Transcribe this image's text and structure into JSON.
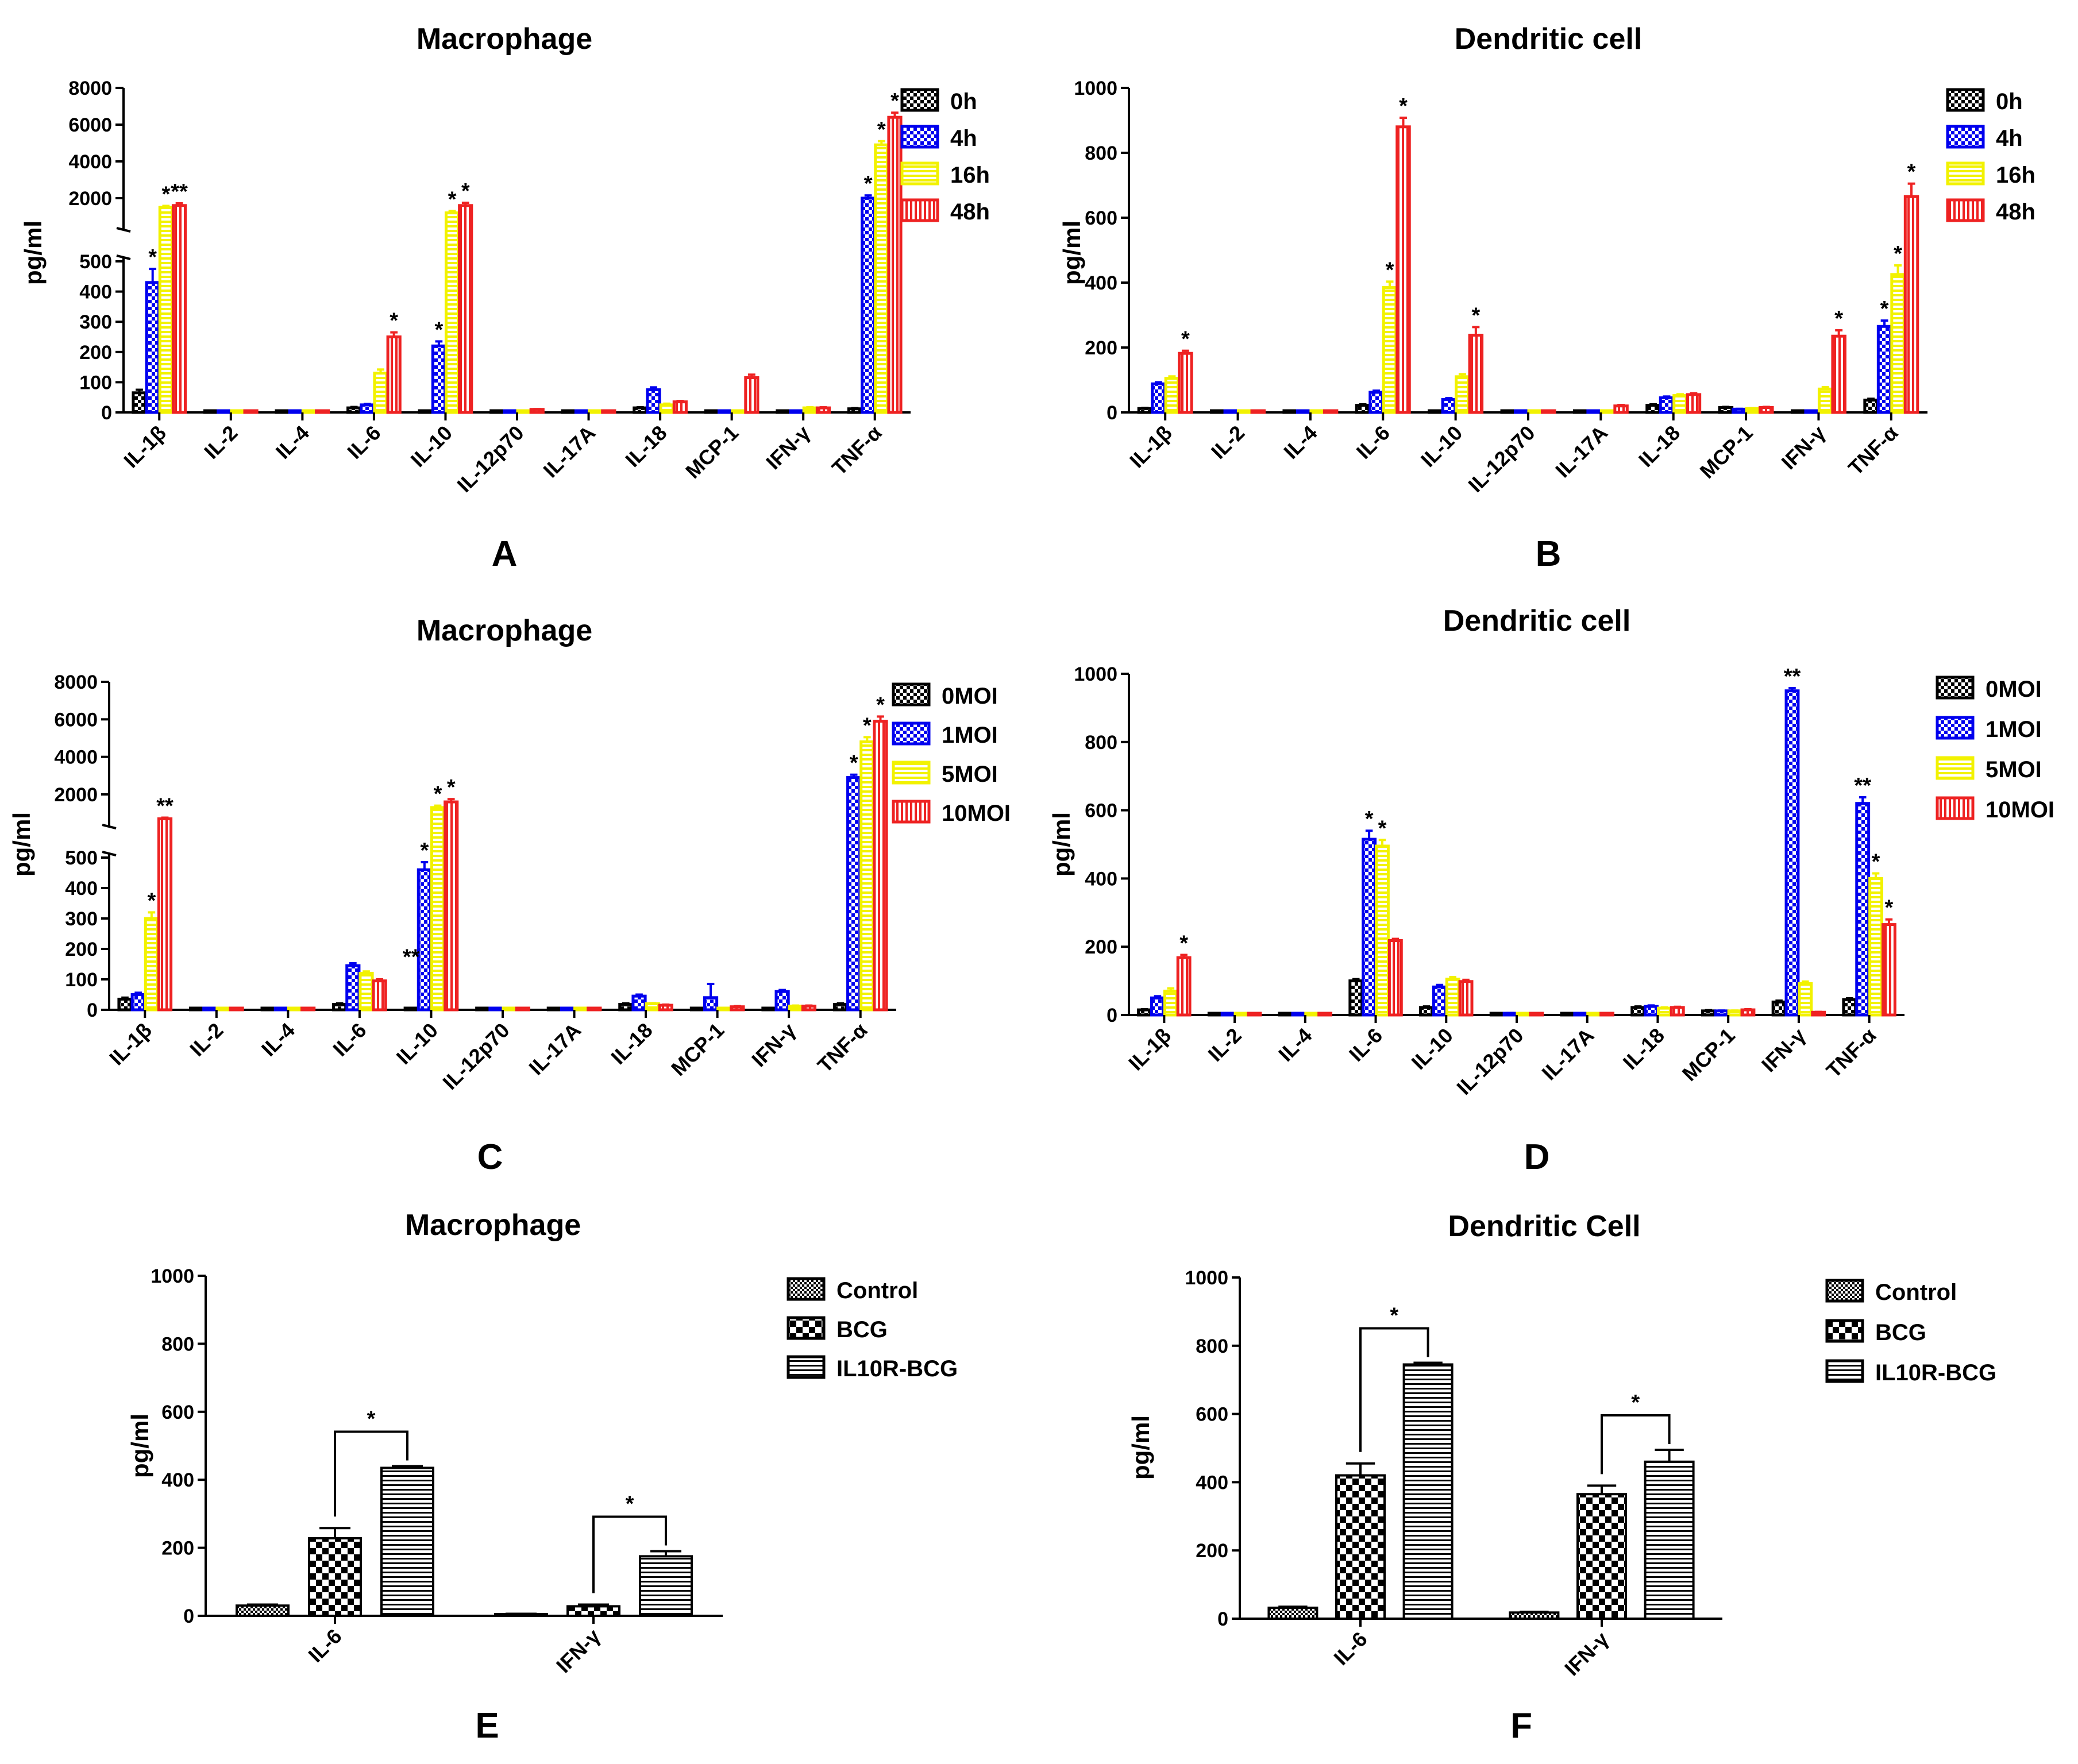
{
  "chart_data": [
    {
      "panel": "A",
      "type": "bar",
      "title": "Macrophage",
      "ylabel": "pg/ml",
      "xlabel": "",
      "y_axis": {
        "broken": true,
        "lower_range": [
          0,
          500
        ],
        "lower_ticks": [
          "0",
          "100",
          "200",
          "300",
          "400",
          "500"
        ],
        "upper_range": [
          500,
          8000
        ],
        "upper_ticks": [
          "2000",
          "4000",
          "6000",
          "8000"
        ]
      },
      "categories": [
        "IL-1β",
        "IL-2",
        "IL-4",
        "IL-6",
        "IL-10",
        "IL-12p70",
        "IL-17A",
        "IL-18",
        "MCP-1",
        "IFN-γ",
        "TNF-α"
      ],
      "series": [
        {
          "name": "0h",
          "color": "#000000",
          "pattern": "checker",
          "values": [
            65,
            3,
            3,
            15,
            3,
            3,
            3,
            15,
            3,
            3,
            12
          ]
        },
        {
          "name": "4h",
          "color": "#0000ee",
          "pattern": "checker",
          "values": [
            430,
            3,
            3,
            25,
            220,
            3,
            3,
            75,
            3,
            3,
            2000
          ]
        },
        {
          "name": "16h",
          "color": "#f2f200",
          "pattern": "hlines",
          "values": [
            1500,
            3,
            3,
            130,
            1200,
            3,
            3,
            25,
            3,
            15,
            4900
          ]
        },
        {
          "name": "48h",
          "color": "#ee2222",
          "pattern": "vlines",
          "values": [
            1600,
            3,
            3,
            250,
            1600,
            10,
            3,
            35,
            115,
            15,
            6400
          ]
        }
      ],
      "error_bars": [
        [
          10,
          0,
          0,
          3,
          0,
          0,
          0,
          2,
          0,
          0,
          2
        ],
        [
          45,
          0,
          0,
          3,
          15,
          0,
          0,
          8,
          0,
          0,
          150
        ],
        [
          80,
          0,
          0,
          12,
          100,
          0,
          0,
          4,
          0,
          2,
          200
        ],
        [
          120,
          0,
          0,
          15,
          150,
          1,
          0,
          3,
          10,
          2,
          250
        ]
      ],
      "annotations": [
        {
          "category": "IL-1β",
          "series": 1,
          "text": "*"
        },
        {
          "category": "IL-1β",
          "series": 2,
          "text": "*"
        },
        {
          "category": "IL-1β",
          "series": 3,
          "text": "**"
        },
        {
          "category": "IL-6",
          "series": 3,
          "text": "*"
        },
        {
          "category": "IL-10",
          "series": 1,
          "text": "*"
        },
        {
          "category": "IL-10",
          "series": 2,
          "text": "*"
        },
        {
          "category": "IL-10",
          "series": 3,
          "text": "*"
        },
        {
          "category": "TNF-α",
          "series": 1,
          "text": "*"
        },
        {
          "category": "TNF-α",
          "series": 2,
          "text": "*"
        },
        {
          "category": "TNF-α",
          "series": 3,
          "text": "*"
        }
      ]
    },
    {
      "panel": "B",
      "type": "bar",
      "title": "Dendritic cell",
      "ylabel": "pg/ml",
      "xlabel": "",
      "ylim": [
        0,
        1000
      ],
      "yticks": [
        "0",
        "200",
        "400",
        "600",
        "800",
        "1000"
      ],
      "categories": [
        "IL-1β",
        "IL-2",
        "IL-4",
        "IL-6",
        "IL-10",
        "IL-12p70",
        "IL-17A",
        "IL-18",
        "MCP-1",
        "IFN-γ",
        "TNF-α"
      ],
      "series": [
        {
          "name": "0h",
          "color": "#000000",
          "pattern": "checker",
          "values": [
            12,
            3,
            3,
            22,
            5,
            3,
            3,
            22,
            15,
            3,
            38
          ]
        },
        {
          "name": "4h",
          "color": "#0000ee",
          "pattern": "checker",
          "values": [
            88,
            3,
            3,
            62,
            40,
            3,
            3,
            45,
            10,
            3,
            265
          ]
        },
        {
          "name": "16h",
          "color": "#f2f200",
          "pattern": "hlines",
          "values": [
            105,
            3,
            3,
            385,
            110,
            3,
            3,
            52,
            12,
            72,
            425
          ]
        },
        {
          "name": "48h",
          "color": "#ee2222",
          "pattern": "vlines",
          "values": [
            182,
            3,
            3,
            880,
            238,
            5,
            20,
            55,
            15,
            235,
            665
          ]
        }
      ],
      "error_bars": [
        [
          2,
          0,
          0,
          3,
          1,
          0,
          0,
          3,
          2,
          0,
          4
        ],
        [
          5,
          0,
          0,
          5,
          4,
          0,
          0,
          4,
          1,
          0,
          18
        ],
        [
          6,
          0,
          0,
          18,
          8,
          0,
          0,
          4,
          1,
          6,
          28
        ],
        [
          8,
          0,
          0,
          28,
          25,
          1,
          3,
          4,
          2,
          18,
          40
        ]
      ],
      "annotations": [
        {
          "category": "IL-1β",
          "series": 3,
          "text": "*"
        },
        {
          "category": "IL-6",
          "series": 2,
          "text": "*"
        },
        {
          "category": "IL-6",
          "series": 3,
          "text": "*"
        },
        {
          "category": "IL-10",
          "series": 3,
          "text": "*"
        },
        {
          "category": "IFN-γ",
          "series": 3,
          "text": "*"
        },
        {
          "category": "TNF-α",
          "series": 1,
          "text": "*"
        },
        {
          "category": "TNF-α",
          "series": 2,
          "text": "*"
        },
        {
          "category": "TNF-α",
          "series": 3,
          "text": "*"
        }
      ]
    },
    {
      "panel": "C",
      "type": "bar",
      "title": "Macrophage",
      "ylabel": "pg/ml",
      "xlabel": "",
      "y_axis": {
        "broken": true,
        "lower_range": [
          0,
          500
        ],
        "lower_ticks": [
          "0",
          "100",
          "200",
          "300",
          "400",
          "500"
        ],
        "upper_range": [
          500,
          8000
        ],
        "upper_ticks": [
          "2000",
          "4000",
          "6000",
          "8000"
        ]
      },
      "categories": [
        "IL-1β",
        "IL-2",
        "IL-4",
        "IL-6",
        "IL-10",
        "IL-12p70",
        "IL-17A",
        "IL-18",
        "MCP-1",
        "IFN-γ",
        "TNF-α"
      ],
      "series": [
        {
          "name": "0MOI",
          "color": "#000000",
          "pattern": "checker",
          "values": [
            35,
            3,
            3,
            18,
            5,
            3,
            3,
            18,
            3,
            5,
            18
          ]
        },
        {
          "name": "1MOI",
          "color": "#0000ee",
          "pattern": "checker",
          "values": [
            50,
            3,
            3,
            145,
            460,
            3,
            3,
            45,
            40,
            60,
            2900
          ]
        },
        {
          "name": "5MOI",
          "color": "#f2f200",
          "pattern": "hlines",
          "values": [
            300,
            3,
            3,
            120,
            1300,
            3,
            3,
            20,
            3,
            12,
            4800
          ]
        },
        {
          "name": "10MOI",
          "color": "#ee2222",
          "pattern": "vlines",
          "values": [
            700,
            3,
            3,
            95,
            1600,
            3,
            3,
            15,
            10,
            12,
            5900
          ]
        }
      ],
      "error_bars": [
        [
          5,
          0,
          0,
          3,
          1,
          0,
          0,
          3,
          0,
          1,
          3
        ],
        [
          6,
          0,
          0,
          8,
          25,
          0,
          0,
          5,
          45,
          5,
          150
        ],
        [
          20,
          0,
          0,
          6,
          100,
          0,
          0,
          2,
          0,
          2,
          250
        ],
        [
          60,
          0,
          0,
          5,
          150,
          0,
          0,
          2,
          2,
          2,
          250
        ]
      ],
      "annotations": [
        {
          "category": "IL-1β",
          "series": 2,
          "text": "*"
        },
        {
          "category": "IL-1β",
          "series": 3,
          "text": "**"
        },
        {
          "category": "IL-10",
          "series": 1,
          "text": "*"
        },
        {
          "category": "IL-10",
          "series": 2,
          "text": "*"
        },
        {
          "category": "IL-10",
          "series": 3,
          "text": "*"
        },
        {
          "category": "IL-10",
          "series": 0,
          "text": "**"
        },
        {
          "category": "TNF-α",
          "series": 1,
          "text": "*"
        },
        {
          "category": "TNF-α",
          "series": 2,
          "text": "*"
        },
        {
          "category": "TNF-α",
          "series": 3,
          "text": "*"
        }
      ]
    },
    {
      "panel": "D",
      "type": "bar",
      "title": "Dendritic cell",
      "ylabel": "pg/ml",
      "xlabel": "",
      "ylim": [
        0,
        1000
      ],
      "yticks": [
        "0",
        "200",
        "400",
        "600",
        "800",
        "1000"
      ],
      "categories": [
        "IL-1β",
        "IL-2",
        "IL-4",
        "IL-6",
        "IL-10",
        "IL-12p70",
        "IL-17A",
        "IL-18",
        "MCP-1",
        "IFN-γ",
        "TNF-α"
      ],
      "series": [
        {
          "name": "0MOI",
          "color": "#000000",
          "pattern": "checker",
          "values": [
            15,
            3,
            3,
            100,
            22,
            3,
            3,
            22,
            12,
            38,
            45
          ]
        },
        {
          "name": "1MOI",
          "color": "#0000ee",
          "pattern": "checker",
          "values": [
            50,
            3,
            3,
            515,
            82,
            5,
            3,
            25,
            12,
            950,
            620
          ]
        },
        {
          "name": "5MOI",
          "color": "#f2f200",
          "pattern": "hlines",
          "values": [
            70,
            3,
            3,
            495,
            105,
            3,
            3,
            20,
            12,
            92,
            400
          ]
        },
        {
          "name": "10MOI",
          "color": "#ee2222",
          "pattern": "vlines",
          "values": [
            168,
            3,
            3,
            218,
            98,
            3,
            3,
            22,
            15,
            8,
            265
          ]
        }
      ],
      "error_bars": [
        [
          2,
          0,
          0,
          5,
          3,
          0,
          0,
          3,
          2,
          4,
          4
        ],
        [
          5,
          0,
          0,
          25,
          6,
          1,
          0,
          3,
          1,
          8,
          18
        ],
        [
          8,
          0,
          0,
          18,
          6,
          0,
          0,
          2,
          1,
          6,
          15
        ],
        [
          8,
          0,
          0,
          5,
          5,
          0,
          0,
          2,
          2,
          1,
          15
        ]
      ],
      "annotations": [
        {
          "category": "IL-1β",
          "series": 3,
          "text": "*"
        },
        {
          "category": "IL-6",
          "series": 1,
          "text": "*"
        },
        {
          "category": "IL-6",
          "series": 2,
          "text": "*"
        },
        {
          "category": "IFN-γ",
          "series": 1,
          "text": "**"
        },
        {
          "category": "TNF-α",
          "series": 1,
          "text": "**"
        },
        {
          "category": "TNF-α",
          "series": 2,
          "text": "*"
        },
        {
          "category": "TNF-α",
          "series": 3,
          "text": "*"
        }
      ]
    },
    {
      "panel": "E",
      "type": "bar",
      "title": "Macrophage",
      "ylabel": "pg/ml",
      "xlabel": "",
      "ylim": [
        0,
        1000
      ],
      "yticks": [
        "0",
        "200",
        "400",
        "600",
        "800",
        "1000"
      ],
      "categories": [
        "IL-6",
        "IFN-γ"
      ],
      "series": [
        {
          "name": "Control",
          "color": "#000000",
          "pattern": "fine-checker",
          "values": [
            30,
            5
          ]
        },
        {
          "name": "BCG",
          "color": "#000000",
          "pattern": "bold-checker",
          "values": [
            228,
            28
          ]
        },
        {
          "name": "IL10R-BCG",
          "color": "#000000",
          "pattern": "hlines",
          "values": [
            435,
            175
          ]
        }
      ],
      "error_bars": [
        [
          3,
          1
        ],
        [
          30,
          5
        ],
        [
          5,
          15
        ]
      ],
      "significance": [
        {
          "category": "IL-6",
          "from": "BCG",
          "to": "IL10R-BCG",
          "text": "*"
        },
        {
          "category": "IFN-γ",
          "from": "BCG",
          "to": "IL10R-BCG",
          "text": "*"
        }
      ]
    },
    {
      "panel": "F",
      "type": "bar",
      "title": "Dendritic Cell",
      "ylabel": "pg/ml",
      "xlabel": "",
      "ylim": [
        0,
        1000
      ],
      "yticks": [
        "0",
        "200",
        "400",
        "600",
        "800",
        "1000"
      ],
      "categories": [
        "IL-6",
        "IFN-γ"
      ],
      "series": [
        {
          "name": "Control",
          "color": "#000000",
          "pattern": "fine-checker",
          "values": [
            32,
            18
          ]
        },
        {
          "name": "BCG",
          "color": "#000000",
          "pattern": "bold-checker",
          "values": [
            420,
            365
          ]
        },
        {
          "name": "IL10R-BCG",
          "color": "#000000",
          "pattern": "hlines",
          "values": [
            745,
            460
          ]
        }
      ],
      "error_bars": [
        [
          3,
          2
        ],
        [
          35,
          25
        ],
        [
          5,
          35
        ]
      ],
      "significance": [
        {
          "category": "IL-6",
          "from": "BCG",
          "to": "IL10R-BCG",
          "text": "*"
        },
        {
          "category": "IFN-γ",
          "from": "BCG",
          "to": "IL10R-BCG",
          "text": "*"
        }
      ]
    }
  ]
}
